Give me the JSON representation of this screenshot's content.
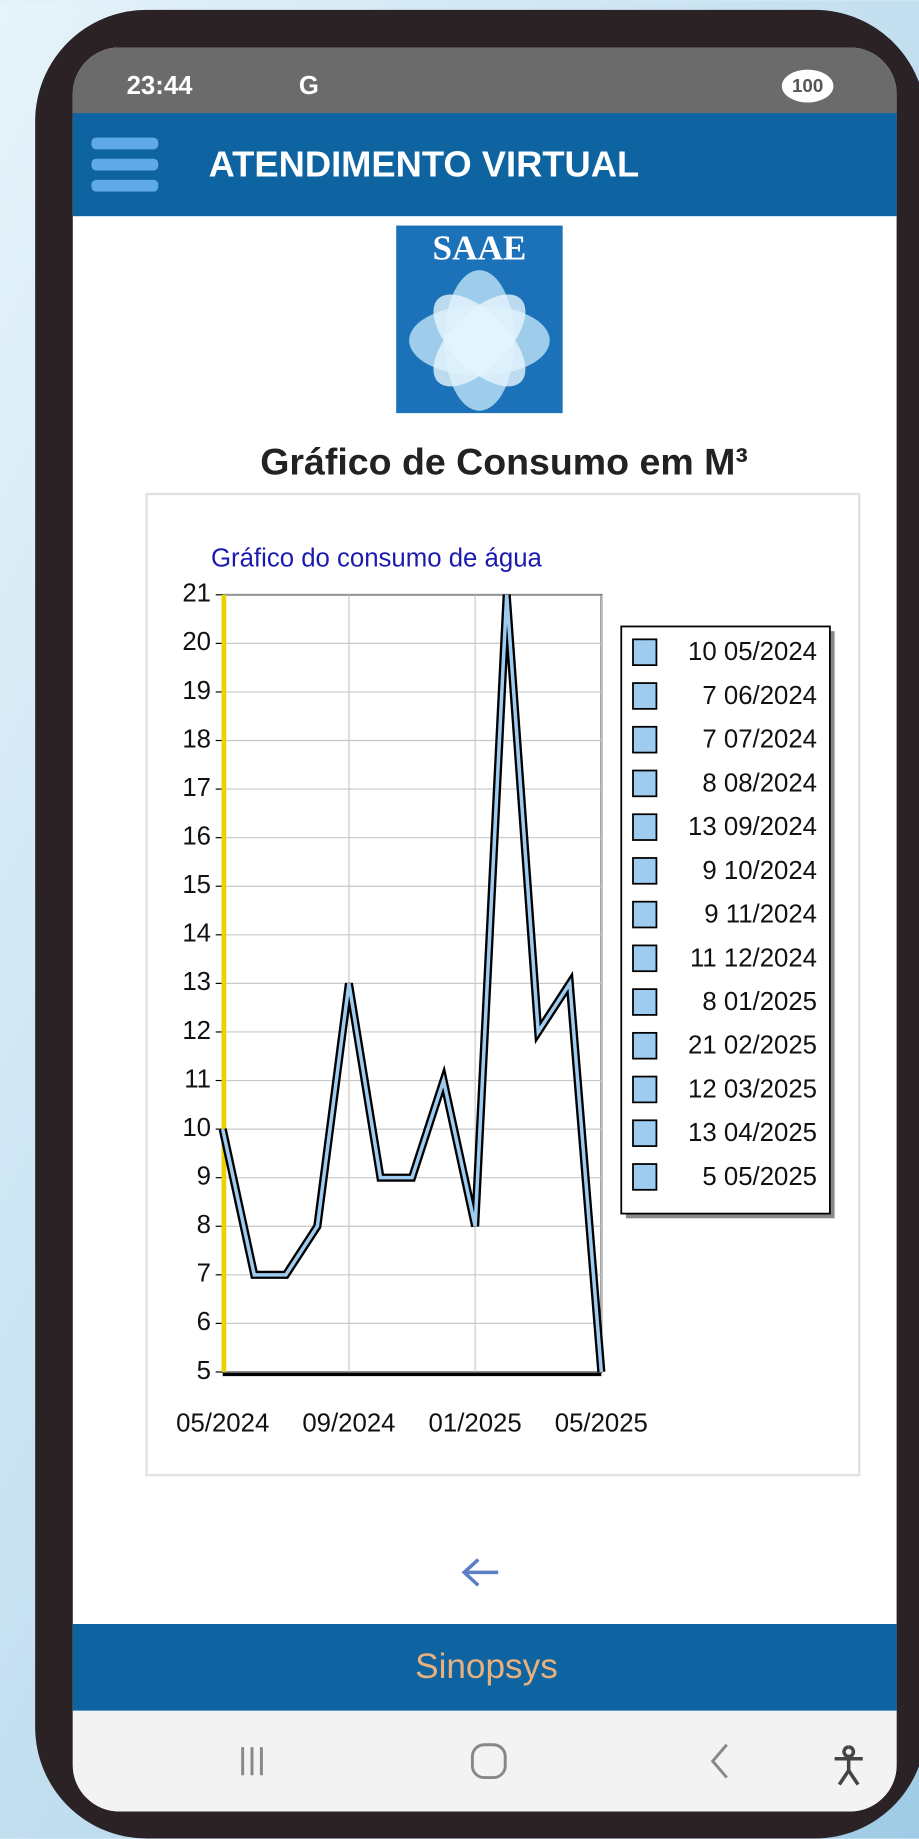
{
  "status_bar": {
    "time": "23:44",
    "network": "G",
    "battery": "100"
  },
  "header": {
    "title": "ATENDIMENTO VIRTUAL"
  },
  "logo_text": "SAAE",
  "page_title": "Gráfico de Consumo em M³",
  "chart_data": {
    "type": "line",
    "title": "Gráfico do consumo de água",
    "categories": [
      "05/2024",
      null,
      null,
      null,
      "09/2024",
      null,
      null,
      null,
      "01/2025",
      null,
      null,
      null,
      "05/2025"
    ],
    "values": [
      10,
      7,
      7,
      8,
      13,
      9,
      9,
      11,
      8,
      21,
      12,
      13,
      5
    ],
    "color": "#9ecbf0",
    "legend_labels": [
      "10 05/2024",
      "7 06/2024",
      "7 07/2024",
      "8 08/2024",
      "13 09/2024",
      "9 10/2024",
      "9 11/2024",
      "11 12/2024",
      "8 01/2025",
      "21 02/2025",
      "12 03/2025",
      "13 04/2025",
      "5 05/2025"
    ],
    "ylim": [
      5,
      21
    ],
    "yticks": [
      5,
      6,
      7,
      8,
      9,
      10,
      11,
      12,
      13,
      14,
      15,
      16,
      17,
      18,
      19,
      20,
      21
    ],
    "grid": true,
    "legend": "right"
  },
  "footer": {
    "text": "Sinopsys"
  }
}
